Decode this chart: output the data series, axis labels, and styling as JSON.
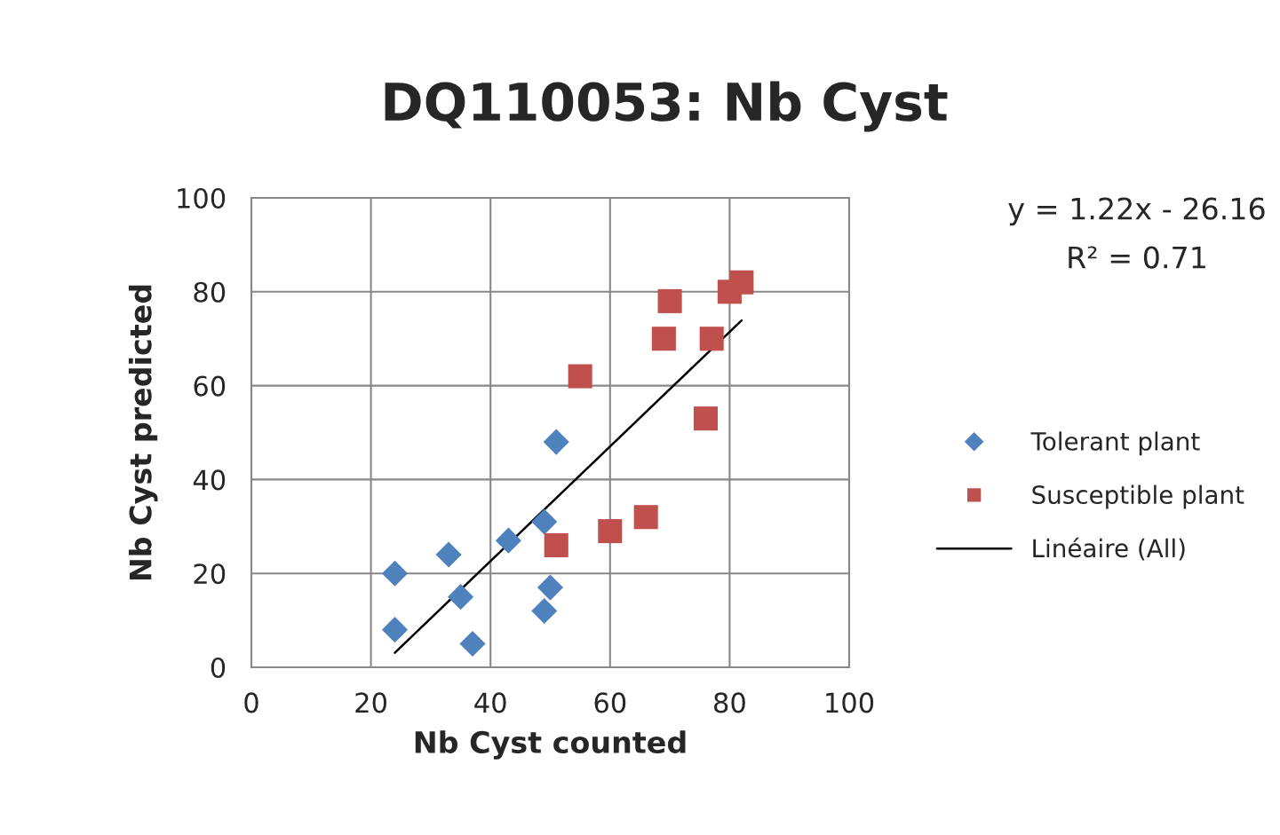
{
  "chart_data": {
    "type": "scatter",
    "title": "DQ110053: Nb Cyst",
    "xlabel": "Nb Cyst counted",
    "ylabel": "Nb Cyst predicted",
    "xlim": [
      0,
      100
    ],
    "ylim": [
      0,
      100
    ],
    "xticks": [
      0,
      20,
      40,
      60,
      80,
      100
    ],
    "yticks": [
      0,
      20,
      40,
      60,
      80,
      100
    ],
    "grid": true,
    "legend": "right",
    "annotations": [
      "y = 1.22x - 26.16",
      "R² = 0.71"
    ],
    "series": [
      {
        "name": "Tolerant plant",
        "marker": "diamond",
        "color": "#4f81bd",
        "x": [
          24,
          24,
          33,
          35,
          37,
          43,
          49,
          50,
          49,
          51
        ],
        "values": [
          20,
          8,
          24,
          15,
          5,
          27,
          31,
          17,
          12,
          48
        ]
      },
      {
        "name": "Susceptible plant",
        "marker": "square",
        "color": "#c0504d",
        "x": [
          51,
          55,
          60,
          66,
          69,
          70,
          76,
          77,
          80,
          82
        ],
        "values": [
          26,
          62,
          29,
          32,
          70,
          78,
          53,
          70,
          80,
          82
        ]
      },
      {
        "name": "Linéaire (All)",
        "type": "line",
        "marker": "none",
        "line_style": "solid",
        "color": "#000000",
        "x": [
          24,
          82
        ],
        "values": [
          3.1,
          73.9
        ]
      }
    ]
  }
}
